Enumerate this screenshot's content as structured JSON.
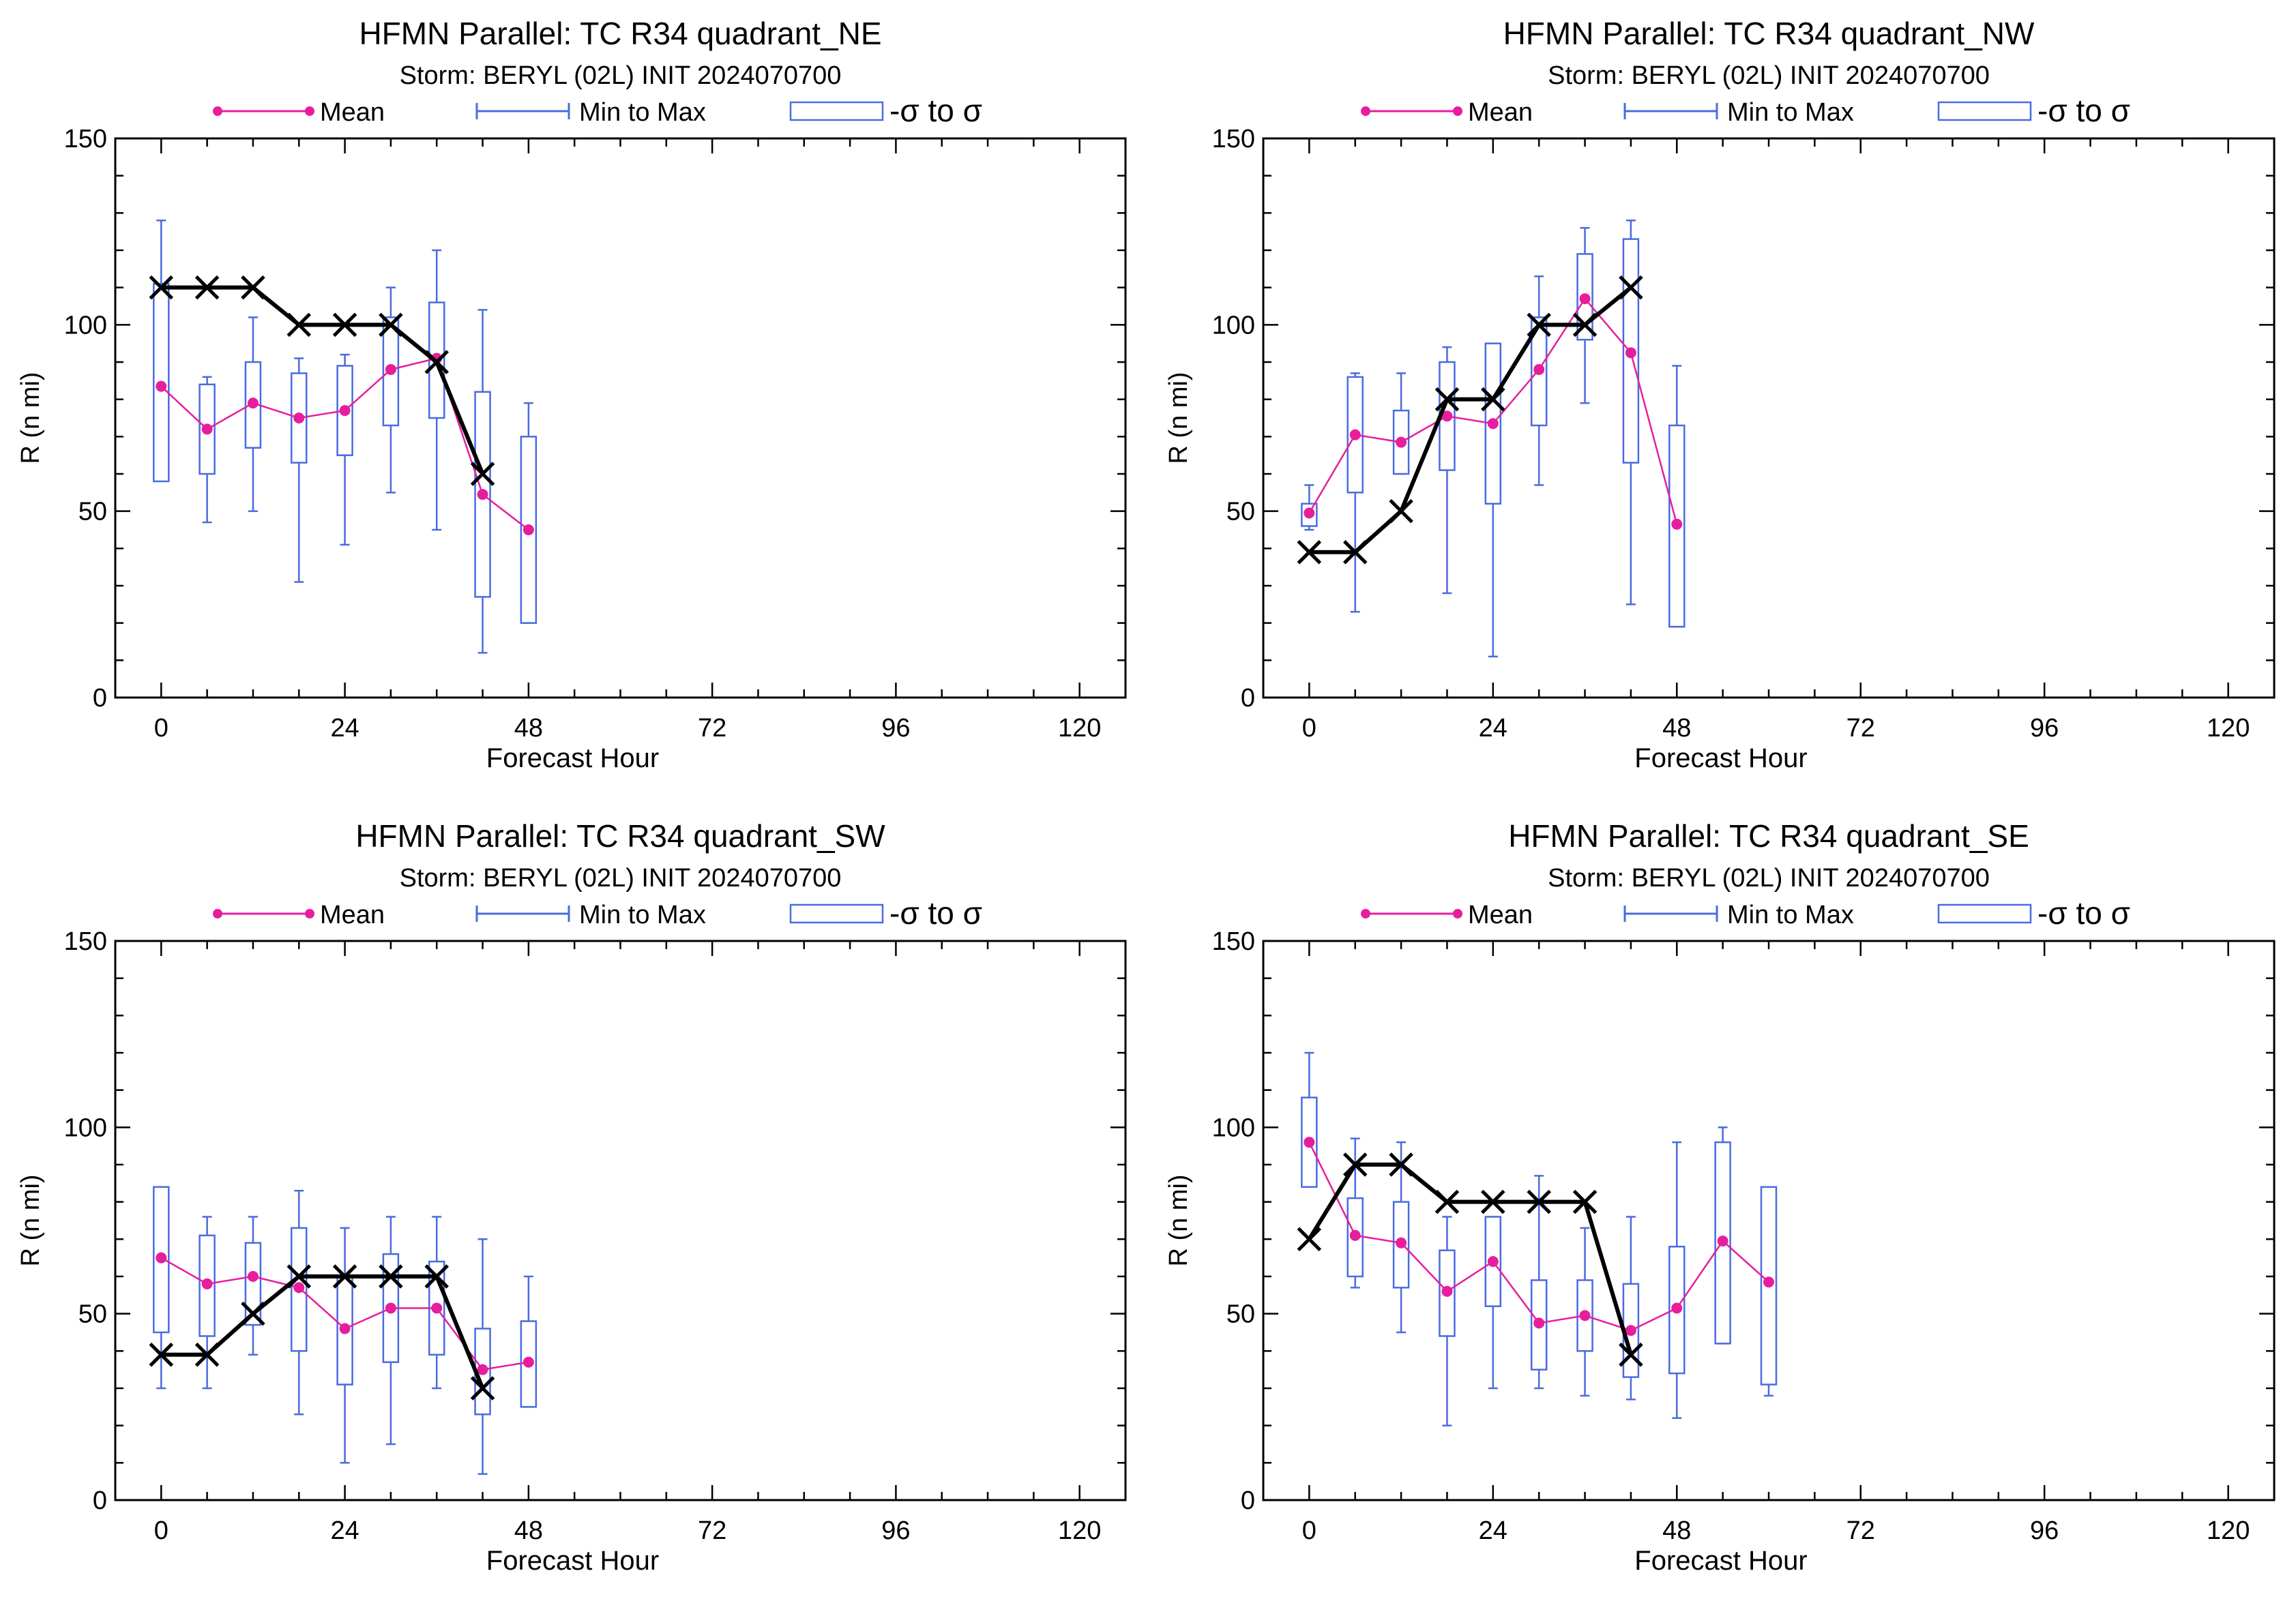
{
  "colors": {
    "mean": "#e61e9e",
    "range": "#4a6be0",
    "box": "#4a6be0",
    "observed": "#000000",
    "axis": "#000000"
  },
  "legend": {
    "mean_label": "Mean",
    "range_label": "Min to Max",
    "box_label": "-σ to σ"
  },
  "chart_data": [
    {
      "type": "box",
      "title": "HFMN Parallel: TC  R34 quadrant_NE",
      "subtitle": "Storm: BERYL (02L) INIT 2024070700",
      "xlabel": "Forecast Hour",
      "ylabel": "R (n mi)",
      "xlim": [
        -6,
        126
      ],
      "ylim": [
        0,
        150
      ],
      "xticks": [
        0,
        24,
        48,
        72,
        96,
        120
      ],
      "yticks": [
        0,
        50,
        100,
        150
      ],
      "grid": false,
      "legend_position": "top",
      "stats": [
        {
          "x": 0,
          "min": 59,
          "max": 128,
          "lo": 58,
          "hi": 111,
          "mean": 83.5
        },
        {
          "x": 6,
          "min": 47,
          "max": 86,
          "lo": 60,
          "hi": 84,
          "mean": 72
        },
        {
          "x": 12,
          "min": 50,
          "max": 102,
          "lo": 67,
          "hi": 90,
          "mean": 79
        },
        {
          "x": 18,
          "min": 31,
          "max": 91,
          "lo": 63,
          "hi": 87,
          "mean": 75
        },
        {
          "x": 24,
          "min": 41,
          "max": 92,
          "lo": 65,
          "hi": 89,
          "mean": 77
        },
        {
          "x": 30,
          "min": 55,
          "max": 110,
          "lo": 73,
          "hi": 102,
          "mean": 88
        },
        {
          "x": 36,
          "min": 45,
          "max": 120,
          "lo": 75,
          "hi": 106,
          "mean": 91
        },
        {
          "x": 42,
          "min": 12,
          "max": 104,
          "lo": 27,
          "hi": 82,
          "mean": 54.5
        },
        {
          "x": 48,
          "min": 20,
          "max": 79,
          "lo": 20,
          "hi": 70,
          "mean": 45
        }
      ],
      "observed": {
        "x": [
          0,
          6,
          12,
          18,
          24,
          30,
          36,
          42
        ],
        "y": [
          110,
          110,
          110,
          100,
          100,
          100,
          90,
          60
        ]
      }
    },
    {
      "type": "box",
      "title": "HFMN Parallel: TC  R34 quadrant_NW",
      "subtitle": "Storm: BERYL (02L) INIT 2024070700",
      "xlabel": "Forecast Hour",
      "ylabel": "R (n mi)",
      "xlim": [
        -6,
        126
      ],
      "ylim": [
        0,
        150
      ],
      "xticks": [
        0,
        24,
        48,
        72,
        96,
        120
      ],
      "yticks": [
        0,
        50,
        100,
        150
      ],
      "grid": false,
      "legend_position": "top",
      "stats": [
        {
          "x": 0,
          "min": 45,
          "max": 57,
          "lo": 46,
          "hi": 52,
          "mean": 49.5
        },
        {
          "x": 6,
          "min": 23,
          "max": 87,
          "lo": 55,
          "hi": 86,
          "mean": 70.5
        },
        {
          "x": 12,
          "min": 60,
          "max": 87,
          "lo": 60,
          "hi": 77,
          "mean": 68.5
        },
        {
          "x": 18,
          "min": 28,
          "max": 94,
          "lo": 61,
          "hi": 90,
          "mean": 75.5
        },
        {
          "x": 24,
          "min": 11,
          "max": 95,
          "lo": 52,
          "hi": 95,
          "mean": 73.5
        },
        {
          "x": 30,
          "min": 57,
          "max": 113,
          "lo": 73,
          "hi": 102,
          "mean": 88
        },
        {
          "x": 36,
          "min": 79,
          "max": 126,
          "lo": 96,
          "hi": 119,
          "mean": 107
        },
        {
          "x": 42,
          "min": 25,
          "max": 128,
          "lo": 63,
          "hi": 123,
          "mean": 92.5
        },
        {
          "x": 48,
          "min": 19,
          "max": 89,
          "lo": 19,
          "hi": 73,
          "mean": 46.5
        }
      ],
      "observed": {
        "x": [
          0,
          6,
          12,
          18,
          24,
          30,
          36,
          42
        ],
        "y": [
          39,
          39,
          50,
          80,
          80,
          100,
          100,
          110
        ]
      }
    },
    {
      "type": "box",
      "title": "HFMN Parallel: TC  R34 quadrant_SW",
      "subtitle": "Storm: BERYL (02L) INIT 2024070700",
      "xlabel": "Forecast Hour",
      "ylabel": "R (n mi)",
      "xlim": [
        -6,
        126
      ],
      "ylim": [
        0,
        150
      ],
      "xticks": [
        0,
        24,
        48,
        72,
        96,
        120
      ],
      "yticks": [
        0,
        50,
        100,
        150
      ],
      "grid": false,
      "legend_position": "top",
      "stats": [
        {
          "x": 0,
          "min": 30,
          "max": 84,
          "lo": 45,
          "hi": 84,
          "mean": 65
        },
        {
          "x": 6,
          "min": 30,
          "max": 76,
          "lo": 44,
          "hi": 71,
          "mean": 58
        },
        {
          "x": 12,
          "min": 39,
          "max": 76,
          "lo": 47,
          "hi": 69,
          "mean": 60
        },
        {
          "x": 18,
          "min": 23,
          "max": 83,
          "lo": 40,
          "hi": 73,
          "mean": 57
        },
        {
          "x": 24,
          "min": 10,
          "max": 73,
          "lo": 31,
          "hi": 60,
          "mean": 46
        },
        {
          "x": 30,
          "min": 15,
          "max": 76,
          "lo": 37,
          "hi": 66,
          "mean": 51.5
        },
        {
          "x": 36,
          "min": 30,
          "max": 76,
          "lo": 39,
          "hi": 64,
          "mean": 51.5
        },
        {
          "x": 42,
          "min": 7,
          "max": 70,
          "lo": 23,
          "hi": 46,
          "mean": 35
        },
        {
          "x": 48,
          "min": 25,
          "max": 60,
          "lo": 25,
          "hi": 48,
          "mean": 37
        }
      ],
      "observed": {
        "x": [
          0,
          6,
          12,
          18,
          24,
          30,
          36,
          42
        ],
        "y": [
          39,
          39,
          50,
          60,
          60,
          60,
          60,
          30
        ]
      }
    },
    {
      "type": "box",
      "title": "HFMN Parallel: TC  R34 quadrant_SE",
      "subtitle": "Storm: BERYL (02L) INIT 2024070700",
      "xlabel": "Forecast Hour",
      "ylabel": "R (n mi)",
      "xlim": [
        -6,
        126
      ],
      "ylim": [
        0,
        150
      ],
      "xticks": [
        0,
        24,
        48,
        72,
        96,
        120
      ],
      "yticks": [
        0,
        50,
        100,
        150
      ],
      "grid": false,
      "legend_position": "top",
      "stats": [
        {
          "x": 0,
          "min": 84,
          "max": 120,
          "lo": 84,
          "hi": 108,
          "mean": 96
        },
        {
          "x": 6,
          "min": 57,
          "max": 97,
          "lo": 60,
          "hi": 81,
          "mean": 71
        },
        {
          "x": 12,
          "min": 45,
          "max": 96,
          "lo": 57,
          "hi": 80,
          "mean": 69
        },
        {
          "x": 18,
          "min": 20,
          "max": 76,
          "lo": 44,
          "hi": 67,
          "mean": 56
        },
        {
          "x": 24,
          "min": 30,
          "max": 76,
          "lo": 52,
          "hi": 76,
          "mean": 64
        },
        {
          "x": 30,
          "min": 30,
          "max": 87,
          "lo": 35,
          "hi": 59,
          "mean": 47.5
        },
        {
          "x": 36,
          "min": 28,
          "max": 73,
          "lo": 40,
          "hi": 59,
          "mean": 49.5
        },
        {
          "x": 42,
          "min": 27,
          "max": 76,
          "lo": 33,
          "hi": 58,
          "mean": 45.5
        },
        {
          "x": 48,
          "min": 22,
          "max": 96,
          "lo": 34,
          "hi": 68,
          "mean": 51.5
        },
        {
          "x": 54,
          "min": 42,
          "max": 100,
          "lo": 42,
          "hi": 96,
          "mean": 69.5
        },
        {
          "x": 60,
          "min": 28,
          "max": 78,
          "lo": 31,
          "hi": 84,
          "mean": 58.5
        }
      ],
      "observed": {
        "x": [
          0,
          6,
          12,
          18,
          24,
          30,
          36,
          42
        ],
        "y": [
          70,
          90,
          90,
          80,
          80,
          80,
          80,
          39
        ]
      }
    }
  ]
}
